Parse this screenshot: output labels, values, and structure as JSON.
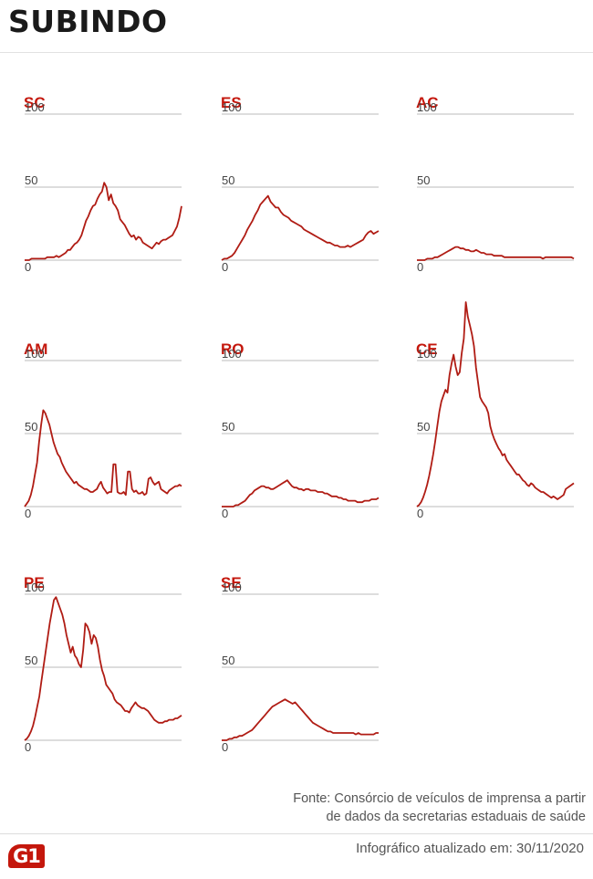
{
  "header": {
    "title": "SUBINDO"
  },
  "colors": {
    "accent": "#c4170c",
    "line": "#b01c14",
    "grid": "#bbbbbb",
    "text": "#444444"
  },
  "chart_data": [
    {
      "type": "line",
      "title": "SC",
      "ylim": [
        0,
        100
      ],
      "yticks": [
        0,
        50,
        100
      ],
      "values": [
        0,
        0,
        0,
        1,
        1,
        1,
        1,
        1,
        1,
        1,
        2,
        2,
        2,
        2,
        3,
        2,
        3,
        4,
        5,
        7,
        7,
        9,
        11,
        12,
        14,
        17,
        22,
        27,
        30,
        34,
        37,
        38,
        42,
        45,
        47,
        53,
        50,
        41,
        45,
        39,
        37,
        34,
        28,
        26,
        24,
        21,
        18,
        16,
        17,
        14,
        16,
        15,
        12,
        11,
        10,
        9,
        8,
        10,
        12,
        11,
        13,
        14,
        14,
        15,
        16,
        17,
        20,
        23,
        29,
        37
      ]
    },
    {
      "type": "line",
      "title": "ES",
      "ylim": [
        0,
        100
      ],
      "yticks": [
        0,
        50,
        100
      ],
      "values": [
        0,
        1,
        1,
        2,
        3,
        5,
        8,
        11,
        14,
        17,
        21,
        24,
        27,
        31,
        34,
        38,
        40,
        42,
        44,
        40,
        38,
        36,
        36,
        33,
        31,
        30,
        29,
        27,
        26,
        25,
        24,
        23,
        21,
        20,
        19,
        18,
        17,
        16,
        15,
        14,
        13,
        12,
        12,
        11,
        10,
        10,
        9,
        9,
        9,
        10,
        9,
        10,
        11,
        12,
        13,
        14,
        17,
        19,
        20,
        18,
        19,
        20
      ]
    },
    {
      "type": "line",
      "title": "AC",
      "ylim": [
        0,
        100
      ],
      "yticks": [
        0,
        50,
        100
      ],
      "values": [
        0,
        0,
        0,
        0,
        1,
        1,
        1,
        2,
        2,
        3,
        4,
        5,
        6,
        7,
        8,
        9,
        9,
        8,
        8,
        7,
        7,
        6,
        6,
        7,
        6,
        5,
        5,
        4,
        4,
        4,
        3,
        3,
        3,
        3,
        2,
        2,
        2,
        2,
        2,
        2,
        2,
        2,
        2,
        2,
        2,
        2,
        2,
        2,
        2,
        1,
        2,
        2,
        2,
        2,
        2,
        2,
        2,
        2,
        2,
        2,
        2,
        1
      ]
    },
    {
      "type": "line",
      "title": "AM",
      "ylim": [
        0,
        100
      ],
      "yticks": [
        0,
        50,
        100
      ],
      "values": [
        0,
        2,
        4,
        8,
        14,
        22,
        30,
        44,
        56,
        66,
        64,
        60,
        56,
        50,
        44,
        40,
        36,
        34,
        30,
        27,
        24,
        22,
        20,
        18,
        16,
        17,
        15,
        14,
        13,
        12,
        12,
        11,
        10,
        10,
        11,
        12,
        15,
        17,
        13,
        11,
        9,
        10,
        10,
        29,
        29,
        10,
        9,
        9,
        10,
        8,
        24,
        24,
        12,
        10,
        11,
        9,
        9,
        10,
        8,
        9,
        19,
        20,
        17,
        15,
        16,
        17,
        12,
        11,
        10,
        9,
        11,
        12,
        13,
        14,
        14,
        15,
        14
      ]
    },
    {
      "type": "line",
      "title": "RO",
      "ylim": [
        0,
        100
      ],
      "yticks": [
        0,
        50,
        100
      ],
      "values": [
        0,
        0,
        0,
        0,
        0,
        0,
        1,
        1,
        2,
        3,
        4,
        6,
        8,
        9,
        11,
        12,
        13,
        14,
        14,
        13,
        13,
        12,
        12,
        13,
        14,
        15,
        16,
        17,
        18,
        16,
        14,
        13,
        13,
        12,
        12,
        11,
        12,
        12,
        11,
        11,
        11,
        10,
        10,
        10,
        9,
        9,
        8,
        7,
        7,
        7,
        6,
        6,
        5,
        5,
        4,
        4,
        4,
        4,
        3,
        3,
        3,
        4,
        4,
        4,
        5,
        5,
        5,
        6
      ]
    },
    {
      "type": "line",
      "title": "CE",
      "ylim": [
        0,
        100
      ],
      "yticks": [
        0,
        50,
        100
      ],
      "values": [
        0,
        1,
        3,
        6,
        10,
        15,
        21,
        28,
        36,
        45,
        55,
        65,
        72,
        76,
        80,
        78,
        90,
        98,
        104,
        96,
        90,
        92,
        105,
        115,
        140,
        130,
        124,
        118,
        110,
        95,
        85,
        75,
        72,
        70,
        68,
        64,
        55,
        50,
        46,
        43,
        40,
        38,
        35,
        36,
        32,
        30,
        28,
        26,
        24,
        22,
        22,
        20,
        18,
        17,
        15,
        14,
        16,
        15,
        13,
        12,
        11,
        10,
        10,
        9,
        8,
        7,
        6,
        7,
        6,
        5,
        6,
        7,
        8,
        12,
        13,
        14,
        15,
        16
      ]
    },
    {
      "type": "line",
      "title": "PE",
      "ylim": [
        0,
        100
      ],
      "yticks": [
        0,
        50,
        100
      ],
      "values": [
        0,
        1,
        3,
        6,
        10,
        16,
        23,
        30,
        40,
        50,
        60,
        70,
        80,
        88,
        96,
        98,
        94,
        90,
        86,
        80,
        72,
        66,
        60,
        64,
        58,
        56,
        52,
        50,
        62,
        80,
        78,
        74,
        66,
        72,
        70,
        64,
        55,
        48,
        44,
        38,
        36,
        34,
        32,
        28,
        26,
        25,
        24,
        22,
        20,
        20,
        19,
        22,
        24,
        26,
        24,
        23,
        22,
        22,
        21,
        20,
        18,
        16,
        14,
        13,
        12,
        12,
        12,
        13,
        13,
        14,
        14,
        14,
        15,
        15,
        16,
        17
      ]
    },
    {
      "type": "line",
      "title": "SE",
      "ylim": [
        0,
        100
      ],
      "yticks": [
        0,
        50,
        100
      ],
      "values": [
        0,
        0,
        0,
        1,
        1,
        2,
        2,
        3,
        3,
        4,
        5,
        6,
        7,
        9,
        11,
        13,
        15,
        17,
        19,
        21,
        23,
        24,
        25,
        26,
        27,
        28,
        27,
        26,
        25,
        26,
        24,
        22,
        20,
        18,
        16,
        14,
        12,
        11,
        10,
        9,
        8,
        7,
        6,
        6,
        5,
        5,
        5,
        5,
        5,
        5,
        5,
        5,
        5,
        4,
        5,
        4,
        4,
        4,
        4,
        4,
        4,
        5,
        5
      ]
    }
  ],
  "footer": {
    "source_line1": "Fonte: Consórcio de veículos de imprensa a partir",
    "source_line2": "de dados da secretarias estaduais de saúde",
    "updated": "Infográfico atualizado em: 30/11/2020",
    "logo": "G1"
  }
}
